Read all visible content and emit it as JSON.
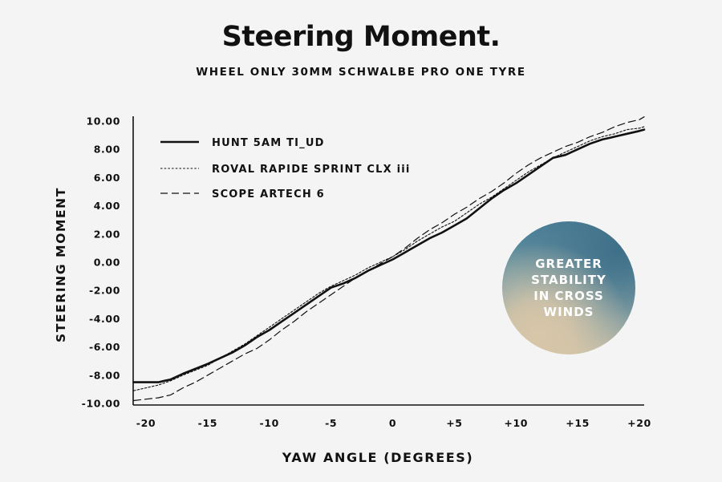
{
  "chart_data": {
    "type": "line",
    "title": "Steering Moment.",
    "subtitle": "WHEEL ONLY 30MM SCHWALBE PRO ONE TYRE",
    "xlabel": "YAW ANGLE (DEGREES)",
    "ylabel": "STEERING MOMENT",
    "xlim": [
      -20,
      20
    ],
    "ylim": [
      -10,
      10
    ],
    "x_ticks": [
      -20,
      -15,
      -10,
      -5,
      0,
      5,
      10,
      15,
      20
    ],
    "x_tick_labels": [
      "-20",
      "-15",
      "-10",
      "-5",
      "0",
      "+5",
      "+10",
      "+15",
      "+20"
    ],
    "y_ticks": [
      10,
      8,
      6,
      4,
      2,
      0,
      -2,
      -4,
      -6,
      -8,
      -10
    ],
    "y_tick_labels": [
      "10.00",
      "8.00",
      "6.00",
      "4.00",
      "2.00",
      "0.00",
      "-2.00",
      "-4.00",
      "-6.00",
      "-8.00",
      "-10.00"
    ],
    "grid": false,
    "legend_position": "top-left",
    "series": [
      {
        "name": "HUNT 5AM TI_UD",
        "style": "solid",
        "color": "#111111",
        "x": [
          -21,
          -20,
          -19,
          -18.5,
          -18,
          -17,
          -15,
          -13,
          -12,
          -11,
          -10,
          -9,
          -8,
          -7,
          -6,
          -5,
          -4,
          -3,
          -2,
          -1,
          0,
          1,
          2,
          3,
          4,
          5,
          6,
          7,
          8,
          9,
          10,
          11,
          12,
          13,
          14,
          15,
          16,
          17,
          18,
          19,
          20,
          21
        ],
        "y": [
          -8.5,
          -8.5,
          -8.5,
          -8.4,
          -8.3,
          -7.9,
          -7.2,
          -6.4,
          -5.9,
          -5.3,
          -4.8,
          -4.2,
          -3.6,
          -3.0,
          -2.4,
          -1.8,
          -1.5,
          -1.1,
          -0.6,
          -0.2,
          0.2,
          0.7,
          1.2,
          1.7,
          2.1,
          2.6,
          3.1,
          3.8,
          4.5,
          5.1,
          5.6,
          6.2,
          6.8,
          7.4,
          7.6,
          8.0,
          8.4,
          8.7,
          8.9,
          9.1,
          9.3,
          9.4
        ]
      },
      {
        "name": "ROVAL RAPIDE SPRINT CLX iii",
        "style": "dotted",
        "color": "#111111",
        "x": [
          -21,
          -20,
          -19,
          -18,
          -17,
          -15,
          -13,
          -12,
          -11,
          -10,
          -9,
          -8,
          -7,
          -6,
          -5,
          -4,
          -3,
          -2,
          -1,
          0,
          1,
          2,
          3,
          4,
          5,
          6,
          7,
          8,
          9,
          10,
          11,
          12,
          13,
          14,
          15,
          16,
          17,
          18,
          19,
          20,
          21
        ],
        "y": [
          -9.1,
          -8.9,
          -8.7,
          -8.4,
          -8.0,
          -7.3,
          -6.3,
          -5.8,
          -5.2,
          -4.6,
          -4.0,
          -3.4,
          -2.8,
          -2.2,
          -1.7,
          -1.3,
          -0.9,
          -0.4,
          0.0,
          0.4,
          0.9,
          1.5,
          2.0,
          2.5,
          2.9,
          3.5,
          4.1,
          4.6,
          5.2,
          5.8,
          6.4,
          6.9,
          7.4,
          7.8,
          8.2,
          8.6,
          8.9,
          9.1,
          9.4,
          9.5,
          9.6
        ]
      },
      {
        "name": "SCOPE ARTECH 6",
        "style": "dashed",
        "color": "#111111",
        "x": [
          -21,
          -20,
          -19,
          -18,
          -17,
          -16,
          -15,
          -14,
          -13,
          -12,
          -11,
          -10,
          -9,
          -8,
          -7,
          -6,
          -5,
          -4,
          -3,
          -2,
          -1,
          0,
          1,
          2,
          3,
          4,
          5,
          6,
          7,
          8,
          9,
          10,
          11,
          12,
          13,
          14,
          15,
          16,
          17,
          18,
          19,
          20,
          21
        ],
        "y": [
          -9.8,
          -9.7,
          -9.6,
          -9.4,
          -8.9,
          -8.5,
          -8.0,
          -7.5,
          -7.0,
          -6.5,
          -6.1,
          -5.5,
          -4.8,
          -4.2,
          -3.5,
          -2.9,
          -2.3,
          -1.7,
          -1.1,
          -0.6,
          -0.1,
          0.4,
          1.0,
          1.7,
          2.3,
          2.8,
          3.4,
          3.9,
          4.5,
          5.0,
          5.6,
          6.3,
          6.9,
          7.4,
          7.8,
          8.2,
          8.5,
          8.9,
          9.2,
          9.6,
          9.9,
          10.1,
          10.3
        ]
      }
    ]
  },
  "callout": {
    "lines": [
      "GREATER",
      "STABILITY",
      "IN CROSS",
      "WINDS"
    ],
    "colors": [
      "#4a7f98",
      "#d8c6a8"
    ]
  }
}
